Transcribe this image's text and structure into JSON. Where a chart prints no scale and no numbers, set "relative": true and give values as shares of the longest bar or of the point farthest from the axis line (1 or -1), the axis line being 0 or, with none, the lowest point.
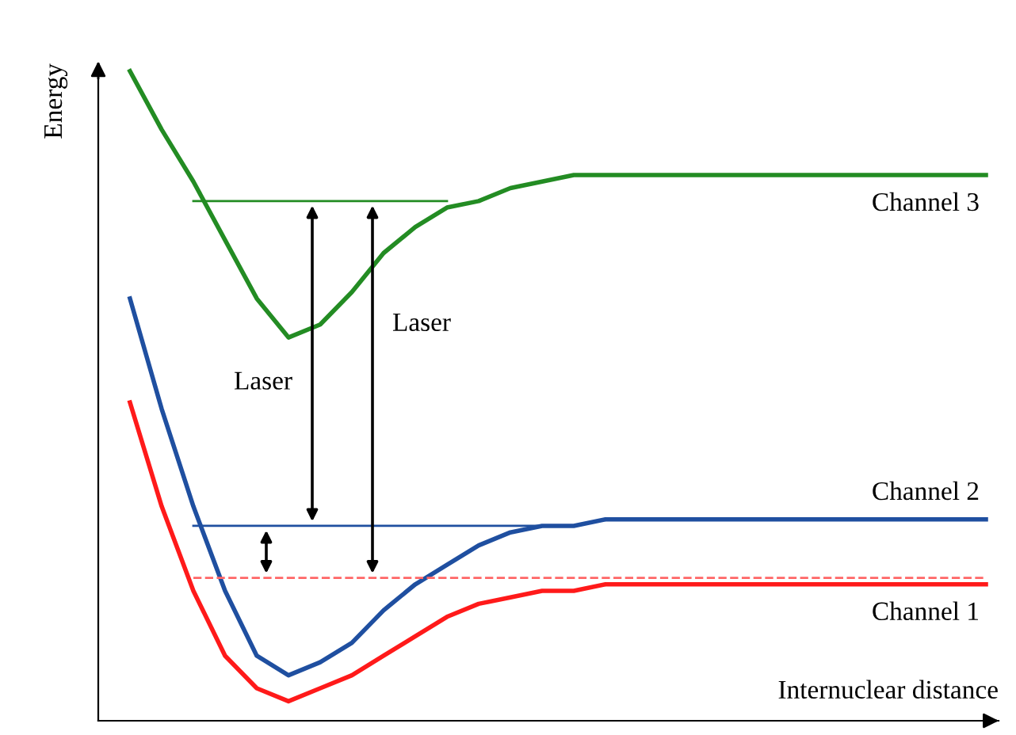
{
  "chart_data": {
    "type": "line",
    "relative": true,
    "xlabel": "Internuclear distance",
    "ylabel": "Energy",
    "categories": [
      null,
      null,
      null,
      null,
      null,
      null,
      null,
      null,
      null,
      null,
      null,
      null,
      null,
      null,
      null,
      null,
      null,
      null,
      null,
      null,
      null,
      null,
      null,
      null,
      null,
      null,
      null,
      null
    ],
    "series": [
      {
        "name": "Channel 3",
        "color": "#238c23",
        "values": [
          1.0,
          0.91,
          0.83,
          0.74,
          0.65,
          0.59,
          0.61,
          0.66,
          0.72,
          0.76,
          0.79,
          0.8,
          0.82,
          0.83,
          0.84,
          0.84,
          0.84,
          0.84,
          0.84,
          0.84,
          0.84,
          0.84,
          0.84,
          0.84,
          0.84,
          0.84,
          0.84,
          0.84
        ]
      },
      {
        "name": "Channel 2",
        "color": "#1f4fa0",
        "values": [
          0.65,
          0.48,
          0.33,
          0.2,
          0.1,
          0.07,
          0.09,
          0.12,
          0.17,
          0.21,
          0.24,
          0.27,
          0.29,
          0.3,
          0.3,
          0.31,
          0.31,
          0.31,
          0.31,
          0.31,
          0.31,
          0.31,
          0.31,
          0.31,
          0.31,
          0.31,
          0.31,
          0.31
        ]
      },
      {
        "name": "Channel 1",
        "color": "#ff1a1a",
        "values": [
          0.49,
          0.33,
          0.2,
          0.1,
          0.05,
          0.03,
          0.05,
          0.07,
          0.1,
          0.13,
          0.16,
          0.18,
          0.19,
          0.2,
          0.2,
          0.21,
          0.21,
          0.21,
          0.21,
          0.21,
          0.21,
          0.21,
          0.21,
          0.21,
          0.21,
          0.21,
          0.21,
          0.21
        ]
      },
      {
        "color": "#238c23",
        "values": [
          null,
          null,
          0.8,
          0.8,
          0.8,
          0.8,
          0.8,
          0.8,
          0.8,
          0.8,
          0.8,
          null,
          null,
          null,
          null,
          null,
          null,
          null,
          null,
          null,
          null,
          null,
          null,
          null,
          null,
          null,
          null,
          null
        ]
      },
      {
        "color": "#1f4fa0",
        "values": [
          null,
          null,
          0.3,
          0.3,
          0.3,
          0.3,
          0.3,
          0.3,
          0.3,
          0.3,
          0.3,
          0.3,
          0.3,
          0.3,
          null,
          null,
          null,
          null,
          null,
          null,
          null,
          null,
          null,
          null,
          null,
          null,
          null,
          null
        ]
      },
      {
        "color": "#ff6666",
        "line_style": "dashed",
        "values": [
          null,
          null,
          0.22,
          0.22,
          0.22,
          0.22,
          0.22,
          0.22,
          0.22,
          0.22,
          0.22,
          0.22,
          0.22,
          0.22,
          0.22,
          0.22,
          0.22,
          0.22,
          0.22,
          0.22,
          0.22,
          0.22,
          0.22,
          0.22,
          0.22,
          0.22,
          0.22,
          0.22
        ]
      }
    ],
    "annotations": [
      "Laser",
      "Laser"
    ]
  }
}
